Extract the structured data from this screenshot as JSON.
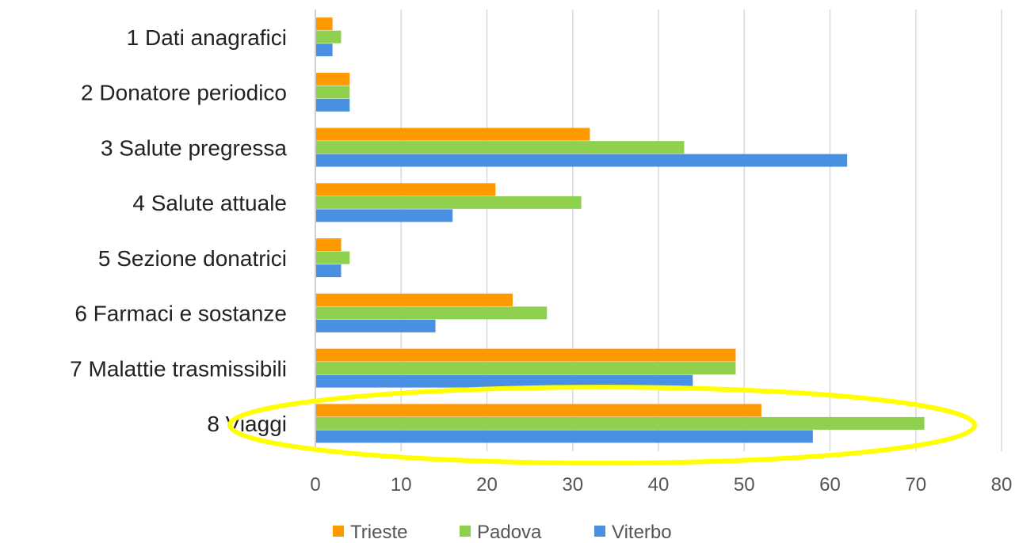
{
  "chart_data": {
    "type": "bar",
    "orientation": "horizontal",
    "categories": [
      "1 Dati anagrafici",
      "2 Donatore periodico",
      "3 Salute pregressa",
      "4 Salute attuale",
      "5 Sezione donatrici",
      "6 Farmaci e sostanze",
      "7 Malattie trasmissibili",
      "8 Viaggi"
    ],
    "series": [
      {
        "name": "Trieste",
        "color": "#FF9900",
        "values": [
          2,
          4,
          32,
          21,
          3,
          23,
          49,
          52
        ]
      },
      {
        "name": "Padova",
        "color": "#8FD14F",
        "values": [
          3,
          4,
          43,
          31,
          4,
          27,
          49,
          71
        ]
      },
      {
        "name": "Viterbo",
        "color": "#4A90E2",
        "values": [
          2,
          4,
          62,
          16,
          3,
          14,
          44,
          58
        ]
      }
    ],
    "xlim": [
      0,
      80
    ],
    "x_ticks": [
      "0",
      "10",
      "20",
      "30",
      "40",
      "50",
      "60",
      "70",
      "80"
    ],
    "grid": "vertical",
    "legend_position": "bottom",
    "title": "",
    "xlabel": "",
    "ylabel": "",
    "highlight": {
      "category": "8 Viaggi",
      "shape": "ellipse",
      "color": "#FFFF00"
    }
  }
}
